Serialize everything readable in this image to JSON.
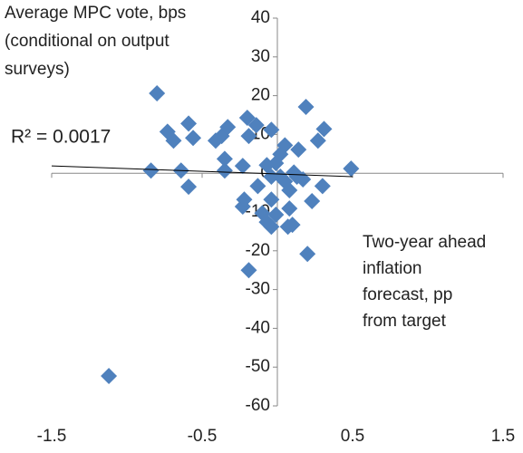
{
  "chart_data": {
    "type": "scatter",
    "y_label_lines": [
      "Average MPC vote, bps",
      "(conditional on output",
      "surveys)"
    ],
    "x_label_lines": [
      "Two-year ahead",
      "inflation",
      "forecast, pp",
      "from target"
    ],
    "annotation": "R² = 0.0017",
    "xlim": [
      -1.5,
      1.5
    ],
    "xticks": [
      -1.5,
      -0.5,
      0.5,
      1.5
    ],
    "ylim": [
      -60,
      40
    ],
    "yticks": [
      40,
      30,
      20,
      10,
      0,
      -10,
      -20,
      -30,
      -40,
      -50,
      -60
    ],
    "color": "#4f81bd",
    "x": [
      -1.12,
      -0.8,
      -0.84,
      -0.73,
      -0.69,
      -0.64,
      -0.59,
      -0.59,
      -0.56,
      -0.41,
      -0.37,
      -0.33,
      -0.35,
      -0.35,
      -0.23,
      -0.2,
      -0.14,
      -0.04,
      -0.19,
      -0.22,
      -0.23,
      -0.13,
      -0.19,
      -0.1,
      -0.07,
      -0.04,
      -0.01,
      -0.04,
      -0.01,
      0.02,
      0.05,
      0.02,
      0.05,
      0.08,
      0.11,
      0.07,
      0.08,
      0.14,
      0.1,
      0.13,
      0.19,
      0.2,
      0.23,
      0.27,
      0.3,
      0.31,
      0.49,
      0.17,
      -0.07,
      -0.04
    ],
    "y": [
      -52.3,
      20.6,
      0.7,
      10.7,
      8.4,
      0.7,
      12.8,
      -3.5,
      9.1,
      8.4,
      9.6,
      11.9,
      0.7,
      3.7,
      1.9,
      14.3,
      12.4,
      11.2,
      9.6,
      -6.8,
      -8.6,
      -3.3,
      -25,
      -10.3,
      -12.6,
      -13.8,
      -10.7,
      -6.8,
      2.6,
      4.9,
      7.2,
      -0.9,
      -2.1,
      -4.4,
      0.2,
      -13.8,
      -9.1,
      6.1,
      -13.3,
      -0.9,
      17.1,
      -20.8,
      -7.2,
      8.4,
      -3.3,
      11.4,
      1.2,
      -1.6,
      2.1,
      -0.9
    ],
    "trendline": {
      "x": [
        -1.5,
        0.5
      ],
      "y": [
        1.9,
        -0.9
      ]
    }
  }
}
